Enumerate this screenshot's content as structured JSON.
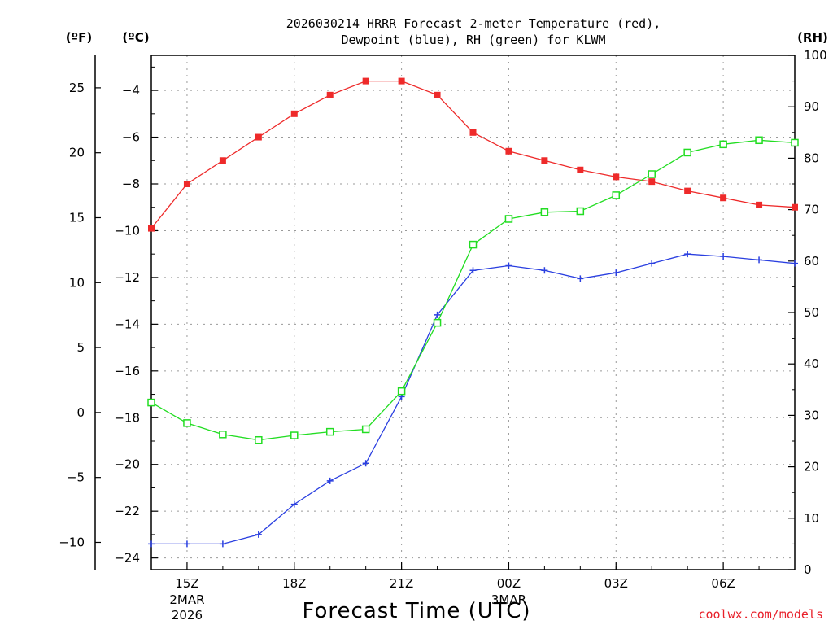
{
  "chart_data": {
    "type": "line",
    "title_line1": "2026030214 HRRR Forecast 2-meter Temperature (red),",
    "title_line2": "Dewpoint (blue), RH (green) for KLWM",
    "xlabel": "Forecast Time (UTC)",
    "credit": "coolwx.com/models",
    "unit_f": "(ºF)",
    "unit_c": "(ºC)",
    "unit_rh": "(RH)",
    "x_hours": [
      14,
      15,
      16,
      17,
      18,
      19,
      20,
      21,
      22,
      23,
      24,
      25,
      26,
      27,
      28,
      29,
      30,
      31,
      32
    ],
    "x_ticks": [
      {
        "hour": 15,
        "label": "15Z",
        "sub1": "2MAR",
        "sub2": "2026"
      },
      {
        "hour": 18,
        "label": "18Z",
        "sub1": "",
        "sub2": ""
      },
      {
        "hour": 21,
        "label": "21Z",
        "sub1": "",
        "sub2": ""
      },
      {
        "hour": 24,
        "label": "00Z",
        "sub1": "3MAR",
        "sub2": ""
      },
      {
        "hour": 27,
        "label": "03Z",
        "sub1": "",
        "sub2": ""
      },
      {
        "hour": 30,
        "label": "06Z",
        "sub1": "",
        "sub2": ""
      }
    ],
    "celsius_range": [
      -24.5,
      -2.5
    ],
    "rh_range": [
      0,
      100
    ],
    "celsius_ticks": [
      -24,
      -22,
      -20,
      -18,
      -16,
      -14,
      -12,
      -10,
      -8,
      -6,
      -4
    ],
    "fahrenheit_ticks": [
      -10,
      -5,
      0,
      5,
      10,
      15,
      20,
      25
    ],
    "rh_ticks": [
      0,
      10,
      20,
      30,
      40,
      50,
      60,
      70,
      80,
      90,
      100
    ],
    "series": [
      {
        "name": "Temperature",
        "color": "#ee2a2a",
        "marker": "filled-square",
        "axis": "C",
        "values": [
          -9.9,
          -8.0,
          -7.0,
          -6.0,
          -5.0,
          -4.2,
          -3.6,
          -3.6,
          -4.2,
          -5.8,
          -6.6,
          -7.0,
          -7.4,
          -7.7,
          -7.9,
          -8.3,
          -8.6,
          -8.9,
          -9.0
        ]
      },
      {
        "name": "Dewpoint",
        "color": "#2a3fe0",
        "marker": "plus",
        "axis": "C",
        "values": [
          -23.4,
          -23.4,
          -23.4,
          -23.0,
          -21.7,
          -20.7,
          -19.95,
          -17.1,
          -13.6,
          -11.7,
          -11.5,
          -11.7,
          -12.05,
          -11.8,
          -11.4,
          -11.0,
          -11.1,
          -11.25,
          -11.4
        ]
      },
      {
        "name": "RH",
        "color": "#22dd22",
        "marker": "open-square",
        "axis": "RH",
        "values": [
          32.5,
          28.5,
          26.3,
          25.2,
          26.1,
          26.8,
          27.3,
          34.7,
          48.0,
          63.2,
          68.2,
          69.5,
          69.7,
          72.8,
          76.9,
          81.1,
          82.7,
          83.5,
          83.0
        ]
      }
    ]
  }
}
